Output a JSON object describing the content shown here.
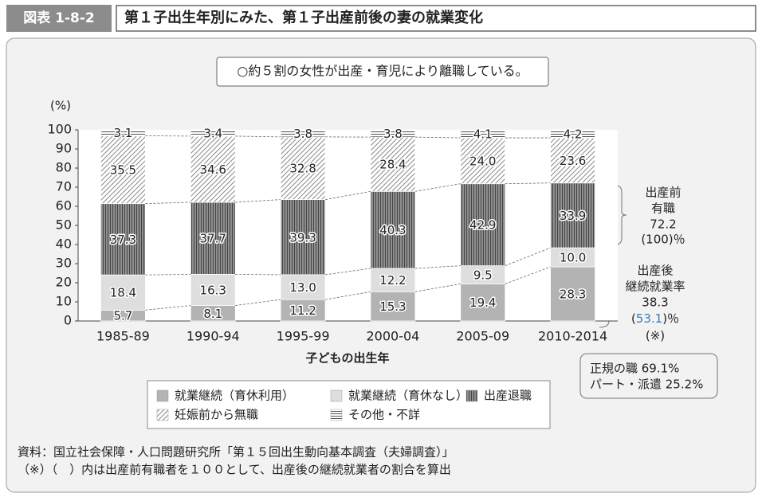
{
  "chart_data": {
    "type": "bar",
    "stacked": true,
    "figure_label": "図表 1-8-2",
    "title": "第１子出生年別にみた、第１子出産前後の妻の就業変化",
    "headline": "○約５割の女性が出産・育児により離職している。",
    "y_unit": "(%)",
    "x_label": "子どもの出生年",
    "categories": [
      "1985-89",
      "1990-94",
      "1995-99",
      "2000-04",
      "2005-09",
      "2010-2014"
    ],
    "series": [
      {
        "name": "就業継続（育休利用）",
        "color": "#b3b3b3",
        "values": [
          5.7,
          8.1,
          11.2,
          15.3,
          19.4,
          28.3
        ]
      },
      {
        "name": "就業継続（育休なし）",
        "color": "#dedede",
        "values": [
          18.4,
          16.3,
          13.0,
          12.2,
          9.5,
          10.0
        ],
        "value_labels": [
          "18.4",
          "16.3",
          "13.0",
          "12.2",
          "9.5",
          "10.0"
        ]
      },
      {
        "name": "出産退職",
        "color": "#8f8f8f",
        "hatch": "vertical",
        "hatch_color": "#444444",
        "values": [
          37.3,
          37.7,
          39.3,
          40.3,
          42.9,
          33.9
        ]
      },
      {
        "name": "妊娠前から無職",
        "color": "#ffffff",
        "hatch": "diagonal",
        "hatch_color": "#8a8a8a",
        "values": [
          35.5,
          34.6,
          32.8,
          28.4,
          24.0,
          23.6
        ],
        "value_labels": [
          "35.5",
          "34.6",
          "32.8",
          "28.4",
          "24.0",
          "23.6"
        ]
      },
      {
        "name": "その他・不詳",
        "color": "#ffffff",
        "hatch": "horizontal",
        "hatch_color": "#555555",
        "values": [
          3.1,
          3.4,
          3.8,
          3.8,
          4.1,
          4.2
        ]
      }
    ],
    "ylim": [
      0,
      100
    ],
    "yticks": [
      0,
      10,
      20,
      30,
      40,
      50,
      60,
      70,
      80,
      90,
      100
    ],
    "connectors": true,
    "pre_birth": {
      "lines": [
        "出産前",
        "有職",
        "72.2",
        "(100)％"
      ]
    },
    "post_birth": {
      "lines": [
        "出産後",
        "継続就業率",
        "38.3"
      ],
      "ratio": [
        "(",
        "53.1",
        ")％"
      ],
      "mark": "(※)"
    },
    "breakdown": [
      "正規の職 69.1%",
      "パート・派遣 25.2%"
    ],
    "footnotes": [
      "資料：国立社会保障・人口問題研究所「第１５回出生動向基本調査（夫婦調査）」",
      "（※）（　）内は出産前有職者を１００として、出産後の継続就業者の割合を算出"
    ]
  }
}
